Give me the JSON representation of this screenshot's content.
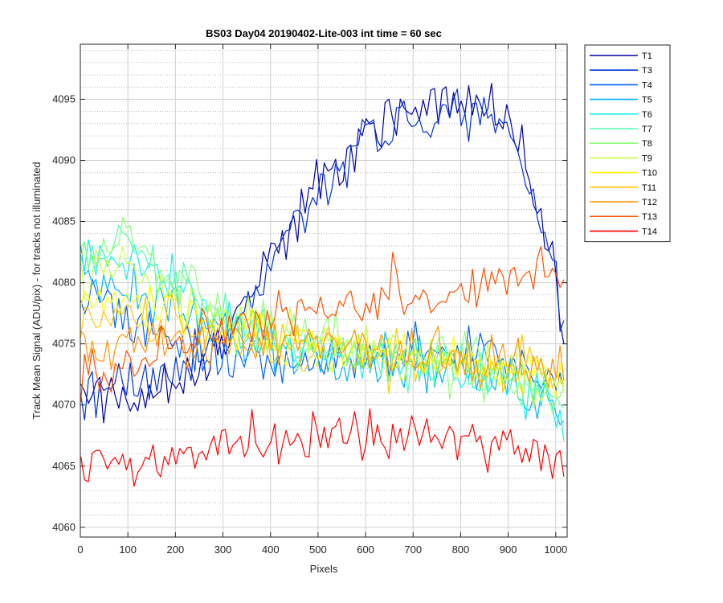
{
  "chart_data": {
    "type": "line",
    "title": "BS03 Day04 20190402-Lite-003 int time = 60 sec",
    "xlabel": "Pixels",
    "ylabel": "Track Mean Signal (ADU/pix) - for tracks not illuminated",
    "xlim": [
      0,
      1024
    ],
    "ylim": [
      4059.2,
      4099.5
    ],
    "x_ticks": [
      0,
      100,
      200,
      300,
      400,
      500,
      600,
      700,
      800,
      900,
      1000
    ],
    "y_ticks": [
      4060,
      4065,
      4070,
      4075,
      4080,
      4085,
      4090,
      4095
    ],
    "grid": true,
    "minor_grid": true,
    "legend_position": "outside-top-right",
    "x_sampling": {
      "start": 1,
      "end": 1024,
      "step": 8
    },
    "series": [
      {
        "name": "T1",
        "color": "#0000a8",
        "keypoints": [
          [
            0,
            4071
          ],
          [
            100,
            4070.5
          ],
          [
            200,
            4072
          ],
          [
            300,
            4075
          ],
          [
            400,
            4082
          ],
          [
            500,
            4088
          ],
          [
            600,
            4092.5
          ],
          [
            700,
            4094
          ],
          [
            800,
            4095
          ],
          [
            900,
            4093.5
          ],
          [
            950,
            4088
          ],
          [
            1000,
            4081
          ],
          [
            1024,
            4073
          ]
        ],
        "noise": 1.3
      },
      {
        "name": "T3",
        "color": "#0032d4",
        "keypoints": [
          [
            0,
            4071
          ],
          [
            100,
            4071.5
          ],
          [
            200,
            4073
          ],
          [
            300,
            4075
          ],
          [
            400,
            4081.5
          ],
          [
            500,
            4087.5
          ],
          [
            600,
            4092
          ],
          [
            700,
            4093
          ],
          [
            800,
            4094
          ],
          [
            900,
            4093
          ],
          [
            950,
            4087
          ],
          [
            1000,
            4081
          ],
          [
            1024,
            4073
          ]
        ],
        "noise": 1.3
      },
      {
        "name": "T4",
        "color": "#0064ff",
        "keypoints": [
          [
            0,
            4079
          ],
          [
            100,
            4077
          ],
          [
            200,
            4075
          ],
          [
            300,
            4073.5
          ],
          [
            400,
            4073
          ],
          [
            500,
            4073.5
          ],
          [
            600,
            4074
          ],
          [
            700,
            4074.5
          ],
          [
            800,
            4074.5
          ],
          [
            900,
            4074
          ],
          [
            1000,
            4072
          ],
          [
            1024,
            4071
          ]
        ],
        "noise": 1.2
      },
      {
        "name": "T5",
        "color": "#00b4ff",
        "keypoints": [
          [
            0,
            4081
          ],
          [
            100,
            4079.5
          ],
          [
            200,
            4077.5
          ],
          [
            300,
            4076
          ],
          [
            400,
            4075
          ],
          [
            500,
            4074.5
          ],
          [
            600,
            4074
          ],
          [
            700,
            4073.5
          ],
          [
            800,
            4073
          ],
          [
            900,
            4072
          ],
          [
            1000,
            4070
          ],
          [
            1024,
            4069
          ]
        ],
        "noise": 1.3
      },
      {
        "name": "T6",
        "color": "#14f0eb",
        "keypoints": [
          [
            0,
            4082
          ],
          [
            100,
            4082
          ],
          [
            200,
            4079.5
          ],
          [
            300,
            4077
          ],
          [
            400,
            4075.5
          ],
          [
            500,
            4074.5
          ],
          [
            600,
            4074
          ],
          [
            700,
            4073.5
          ],
          [
            800,
            4073
          ],
          [
            900,
            4071.5
          ],
          [
            1000,
            4070
          ],
          [
            1024,
            4068.5
          ]
        ],
        "noise": 1.3
      },
      {
        "name": "T7",
        "color": "#50ffb4",
        "keypoints": [
          [
            0,
            4081.5
          ],
          [
            100,
            4083
          ],
          [
            200,
            4080
          ],
          [
            300,
            4077
          ],
          [
            400,
            4075.5
          ],
          [
            500,
            4074.5
          ],
          [
            600,
            4074
          ],
          [
            700,
            4073.5
          ],
          [
            800,
            4073
          ],
          [
            900,
            4072
          ],
          [
            1000,
            4070.5
          ],
          [
            1024,
            4069
          ]
        ],
        "noise": 1.3
      },
      {
        "name": "T8",
        "color": "#8cff78",
        "keypoints": [
          [
            0,
            4082
          ],
          [
            100,
            4084
          ],
          [
            200,
            4080.5
          ],
          [
            300,
            4077.5
          ],
          [
            400,
            4076
          ],
          [
            500,
            4075
          ],
          [
            600,
            4074.5
          ],
          [
            700,
            4074
          ],
          [
            800,
            4073.5
          ],
          [
            900,
            4072.5
          ],
          [
            1000,
            4071
          ],
          [
            1024,
            4070
          ]
        ],
        "noise": 1.3
      },
      {
        "name": "T9",
        "color": "#c8ff3c",
        "keypoints": [
          [
            0,
            4080.5
          ],
          [
            100,
            4081.5
          ],
          [
            200,
            4079
          ],
          [
            300,
            4077
          ],
          [
            400,
            4076
          ],
          [
            500,
            4075
          ],
          [
            600,
            4074.5
          ],
          [
            700,
            4074
          ],
          [
            800,
            4073.5
          ],
          [
            900,
            4072.5
          ],
          [
            1000,
            4071.5
          ],
          [
            1024,
            4070.5
          ]
        ],
        "noise": 1.2
      },
      {
        "name": "T10",
        "color": "#ffff00",
        "keypoints": [
          [
            0,
            4078.5
          ],
          [
            100,
            4079
          ],
          [
            200,
            4077.5
          ],
          [
            300,
            4076.5
          ],
          [
            400,
            4075.5
          ],
          [
            500,
            4074.5
          ],
          [
            600,
            4074
          ],
          [
            700,
            4073.5
          ],
          [
            800,
            4073.5
          ],
          [
            900,
            4073
          ],
          [
            1000,
            4072
          ],
          [
            1024,
            4071
          ]
        ],
        "noise": 1.2
      },
      {
        "name": "T11",
        "color": "#ffc800",
        "keypoints": [
          [
            0,
            4076.5
          ],
          [
            100,
            4077
          ],
          [
            200,
            4076.5
          ],
          [
            300,
            4076
          ],
          [
            400,
            4075
          ],
          [
            500,
            4074.5
          ],
          [
            600,
            4074
          ],
          [
            700,
            4073.5
          ],
          [
            800,
            4073.5
          ],
          [
            900,
            4073
          ],
          [
            1000,
            4072.5
          ],
          [
            1024,
            4071.5
          ]
        ],
        "noise": 1.2
      },
      {
        "name": "T12",
        "color": "#ff9600",
        "keypoints": [
          [
            0,
            4075
          ],
          [
            100,
            4075
          ],
          [
            200,
            4075
          ],
          [
            300,
            4075.5
          ],
          [
            400,
            4075
          ],
          [
            500,
            4074.5
          ],
          [
            600,
            4074
          ],
          [
            700,
            4074
          ],
          [
            800,
            4074
          ],
          [
            900,
            4073.5
          ],
          [
            1000,
            4073
          ],
          [
            1024,
            4072.5
          ]
        ],
        "noise": 1.2
      },
      {
        "name": "T13",
        "color": "#ff5000",
        "keypoints": [
          [
            0,
            4073
          ],
          [
            100,
            4073.5
          ],
          [
            200,
            4075
          ],
          [
            300,
            4076
          ],
          [
            400,
            4077
          ],
          [
            500,
            4077.5
          ],
          [
            600,
            4078.5
          ],
          [
            640,
            4079
          ],
          [
            660,
            4080.5
          ],
          [
            700,
            4078.5
          ],
          [
            800,
            4079
          ],
          [
            900,
            4080
          ],
          [
            980,
            4081.5
          ],
          [
            1024,
            4080
          ]
        ],
        "noise": 1.2
      },
      {
        "name": "T14",
        "color": "#ff0000",
        "keypoints": [
          [
            0,
            4065
          ],
          [
            100,
            4065
          ],
          [
            200,
            4066
          ],
          [
            300,
            4066.5
          ],
          [
            400,
            4067
          ],
          [
            500,
            4067.5
          ],
          [
            600,
            4067.5
          ],
          [
            700,
            4067.5
          ],
          [
            800,
            4067
          ],
          [
            900,
            4066.5
          ],
          [
            1000,
            4066
          ],
          [
            1024,
            4066
          ]
        ],
        "noise": 1.2
      }
    ]
  }
}
